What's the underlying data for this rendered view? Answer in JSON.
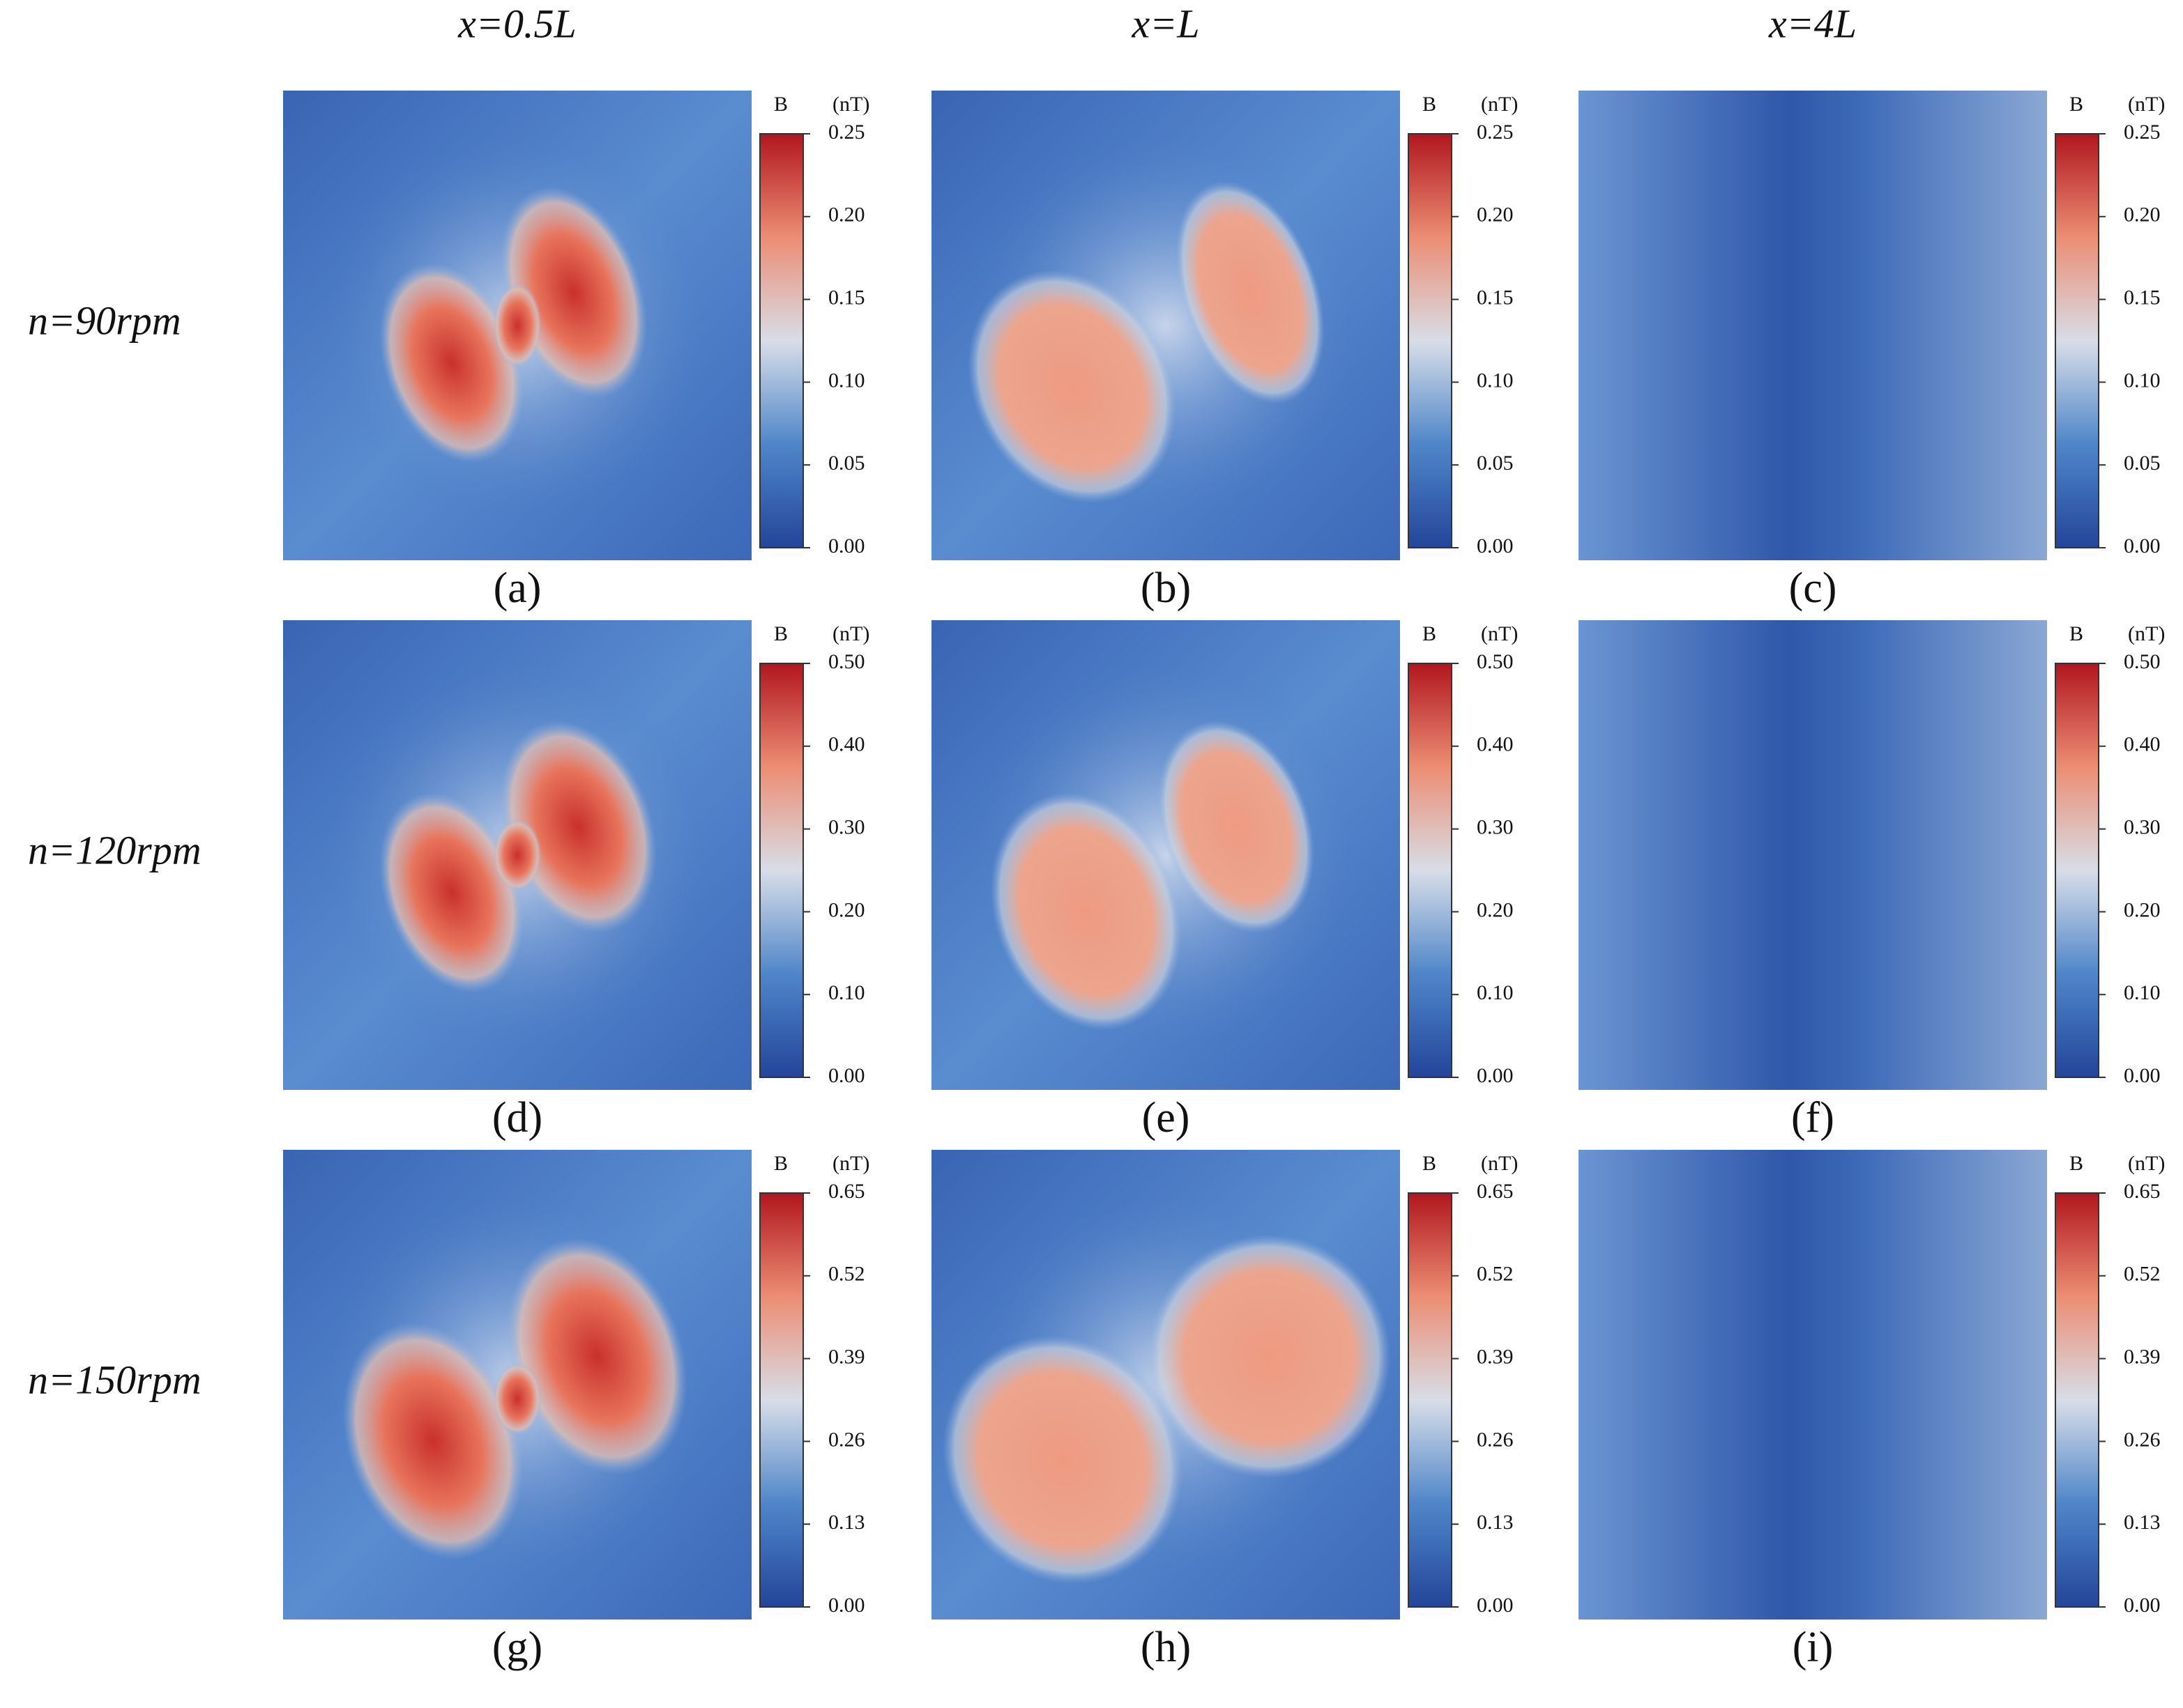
{
  "figure": {
    "columns": [
      "x=0.5L",
      "x=L",
      "x=4L"
    ],
    "rows": [
      "n=90rpm",
      "n=120rpm",
      "n=150rpm"
    ],
    "panels": [
      {
        "label": "(a)",
        "colorbar": {
          "title": "B",
          "unit": "(nT)",
          "lim": [
            0,
            0.25
          ],
          "ticks": [
            {
              "value": 0,
              "label": "0.00"
            },
            0.05,
            {
              "value": 0.1,
              "label": "0.10"
            },
            0.15,
            {
              "value": 0.2,
              "label": "0.20"
            },
            0.25
          ]
        }
      },
      {
        "label": "(b)",
        "colorbar": {
          "title": "B",
          "unit": "(nT)",
          "lim": [
            0,
            0.25
          ],
          "ticks": [
            {
              "value": 0,
              "label": "0.00"
            },
            0.05,
            {
              "value": 0.1,
              "label": "0.10"
            },
            0.15,
            {
              "value": 0.2,
              "label": "0.20"
            },
            0.25
          ]
        }
      },
      {
        "label": "(c)",
        "colorbar": {
          "title": "B",
          "unit": "(nT)",
          "lim": [
            0,
            0.25
          ],
          "ticks": [
            {
              "value": 0,
              "label": "0.00"
            },
            0.05,
            {
              "value": 0.1,
              "label": "0.10"
            },
            0.15,
            {
              "value": 0.2,
              "label": "0.20"
            },
            0.25
          ]
        }
      },
      {
        "label": "(d)",
        "colorbar": {
          "title": "B",
          "unit": "(nT)",
          "lim": [
            0,
            0.5
          ],
          "ticks": [
            {
              "value": 0,
              "label": "0.00"
            },
            {
              "value": 0.1,
              "label": "0.10"
            },
            {
              "value": 0.2,
              "label": "0.20"
            },
            {
              "value": 0.3,
              "label": "0.30"
            },
            {
              "value": 0.4,
              "label": "0.40"
            },
            {
              "value": 0.5,
              "label": "0.50"
            }
          ]
        }
      },
      {
        "label": "(e)",
        "colorbar": {
          "title": "B",
          "unit": "(nT)",
          "lim": [
            0,
            0.5
          ],
          "ticks": [
            {
              "value": 0,
              "label": "0.00"
            },
            {
              "value": 0.1,
              "label": "0.10"
            },
            {
              "value": 0.2,
              "label": "0.20"
            },
            {
              "value": 0.3,
              "label": "0.30"
            },
            {
              "value": 0.4,
              "label": "0.40"
            },
            {
              "value": 0.5,
              "label": "0.50"
            }
          ]
        }
      },
      {
        "label": "(f)",
        "colorbar": {
          "title": "B",
          "unit": "(nT)",
          "lim": [
            0,
            0.5
          ],
          "ticks": [
            {
              "value": 0,
              "label": "0.00"
            },
            {
              "value": 0.1,
              "label": "0.10"
            },
            {
              "value": 0.2,
              "label": "0.20"
            },
            {
              "value": 0.3,
              "label": "0.30"
            },
            {
              "value": 0.4,
              "label": "0.40"
            },
            {
              "value": 0.5,
              "label": "0.50"
            }
          ]
        }
      },
      {
        "label": "(g)",
        "colorbar": {
          "title": "B",
          "unit": "(nT)",
          "lim": [
            0,
            0.65
          ],
          "ticks": [
            {
              "value": 0,
              "label": "0.00"
            },
            0.13,
            0.26,
            0.39,
            0.52,
            0.65
          ]
        }
      },
      {
        "label": "(h)",
        "colorbar": {
          "title": "B",
          "unit": "(nT)",
          "lim": [
            0,
            0.65
          ],
          "ticks": [
            {
              "value": 0,
              "label": "0.00"
            },
            0.13,
            0.26,
            0.39,
            0.52,
            0.65
          ]
        }
      },
      {
        "label": "(i)",
        "colorbar": {
          "title": "B",
          "unit": "(nT)",
          "lim": [
            0,
            0.65
          ],
          "ticks": [
            {
              "value": 0,
              "label": "0.00"
            },
            0.13,
            0.26,
            0.39,
            0.52,
            0.65
          ]
        }
      }
    ]
  }
}
